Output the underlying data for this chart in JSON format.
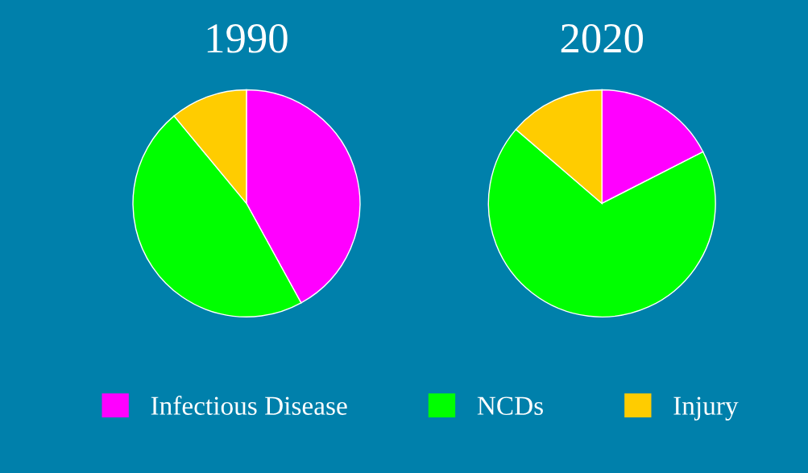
{
  "chart_data": [
    {
      "type": "pie",
      "title": "1990",
      "categories": [
        "Infectious Disease",
        "NCDs",
        "Injury"
      ],
      "values": [
        42,
        47,
        11
      ],
      "colors": [
        "#ff00ff",
        "#00ff00",
        "#ffcc00"
      ],
      "legend": "bottom"
    },
    {
      "type": "pie",
      "title": "2020",
      "categories": [
        null,
        null,
        null
      ],
      "values": [
        17.5,
        68.8,
        13.7
      ],
      "colors": [
        "#ff00ff",
        "#00ff00",
        "#ffcc00"
      ]
    }
  ]
}
